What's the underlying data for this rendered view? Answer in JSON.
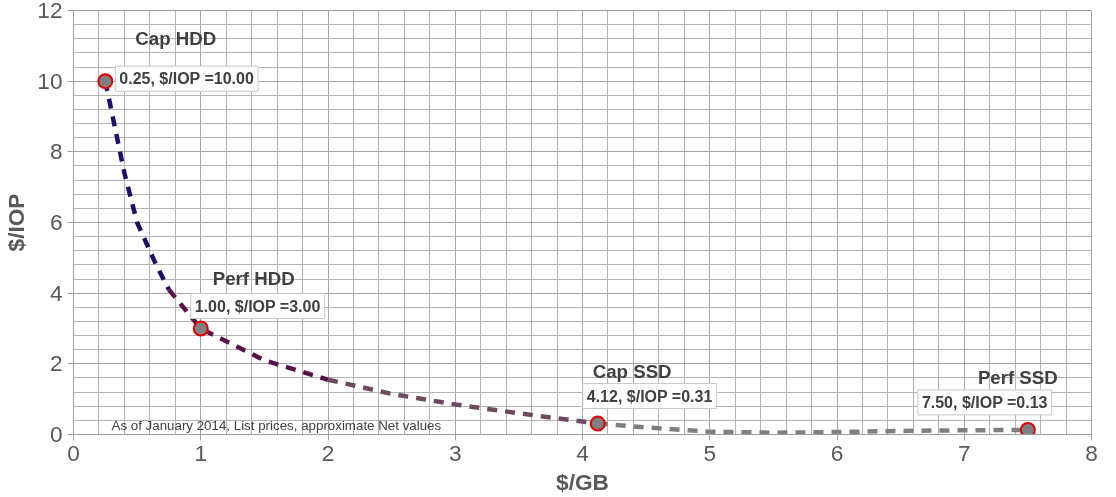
{
  "chart_data": {
    "type": "line",
    "xlabel": "$/GB",
    "ylabel": "$/IOP",
    "xlim": [
      0,
      8
    ],
    "ylim": [
      0,
      12
    ],
    "xticks": [
      0,
      1,
      2,
      3,
      4,
      5,
      6,
      7,
      8
    ],
    "yticks": [
      0,
      2,
      4,
      6,
      8,
      10,
      12
    ],
    "grid": true,
    "series": [
      {
        "color": "#1f0f6b",
        "line_style": "dashed",
        "marker": "none",
        "x": [
          0.25,
          0.4,
          0.5,
          0.65,
          0.75
        ],
        "values": [
          10.0,
          7.4,
          6.0,
          4.8,
          4.1
        ]
      },
      {
        "color": "#5a1048",
        "line_style": "dashed",
        "marker": "none",
        "x": [
          0.75,
          1.0,
          1.5,
          2.0
        ],
        "values": [
          4.1,
          3.0,
          2.1,
          1.55
        ]
      },
      {
        "color": "#6e4a62",
        "line_style": "dashed",
        "marker": "none",
        "x": [
          2.0,
          2.5,
          3.0,
          3.5,
          4.12
        ],
        "values": [
          1.55,
          1.15,
          0.85,
          0.6,
          0.31
        ]
      },
      {
        "color": "#7f7f7f",
        "line_style": "dashed",
        "marker": "none",
        "x": [
          4.12,
          4.5,
          5.0,
          5.5,
          6.0,
          6.5,
          7.0,
          7.5
        ],
        "values": [
          0.31,
          0.2,
          0.08,
          0.05,
          0.07,
          0.1,
          0.12,
          0.13
        ]
      },
      {
        "type": "scatter",
        "color": "#808080",
        "marker": "circle",
        "x": [
          0.25,
          1.0,
          4.12,
          7.5
        ],
        "values": [
          10.0,
          3.0,
          0.31,
          0.13
        ],
        "value_labels": [
          "0.25, $/IOP =10.00",
          "1.00, $/IOP =3.00",
          "4.12, $/IOP =0.31",
          "7.50, $/IOP =0.13"
        ]
      }
    ],
    "annotations": [
      {
        "text": "Cap HDD",
        "x": 0.25,
        "y": 10.0
      },
      {
        "text": "Perf HDD",
        "x": 1.0,
        "y": 3.0
      },
      {
        "text": "Cap SSD",
        "x": 4.12,
        "y": 0.31
      },
      {
        "text": "Perf SSD",
        "x": 7.5,
        "y": 0.13
      },
      "As of January 2014, List prices, approximate Net values"
    ]
  }
}
